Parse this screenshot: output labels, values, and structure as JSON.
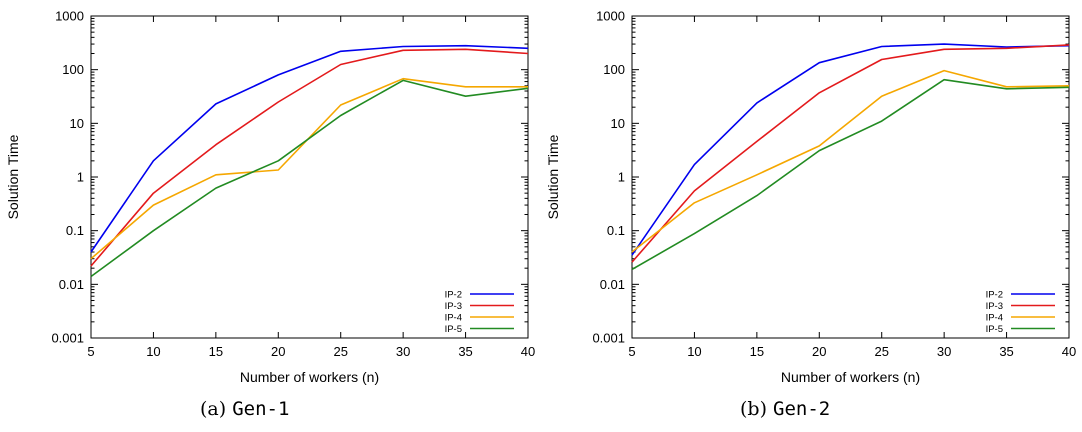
{
  "chart_data": [
    {
      "type": "line",
      "caption_label": "(a)",
      "caption_tag": "Gen-1",
      "xlabel": "Number of workers (n)",
      "ylabel": "Solution Time",
      "yscale": "log",
      "xlim": [
        5,
        40
      ],
      "ylim": [
        0.001,
        1000
      ],
      "xticks": [
        "5",
        "10",
        "15",
        "20",
        "25",
        "30",
        "35",
        "40"
      ],
      "yticks": [
        "0.001",
        "0.01",
        "0.1",
        "1",
        "10",
        "100",
        "1000"
      ],
      "grid": false,
      "legend_position": "bottom-right",
      "x": [
        5,
        10,
        15,
        20,
        25,
        30,
        35,
        40
      ],
      "series": [
        {
          "name": "IP-2",
          "color": "#0000ee",
          "values": [
            0.04,
            2.0,
            23,
            80,
            220,
            270,
            280,
            250
          ]
        },
        {
          "name": "IP-3",
          "color": "#e31a1c",
          "values": [
            0.022,
            0.5,
            4.0,
            25,
            125,
            230,
            240,
            200
          ]
        },
        {
          "name": "IP-4",
          "color": "#f5a700",
          "values": [
            0.03,
            0.3,
            1.1,
            1.35,
            22,
            68,
            48,
            48
          ]
        },
        {
          "name": "IP-5",
          "color": "#228b22",
          "values": [
            0.014,
            0.1,
            0.62,
            2.0,
            14,
            63,
            32,
            45
          ]
        }
      ]
    },
    {
      "type": "line",
      "caption_label": "(b)",
      "caption_tag": "Gen-2",
      "xlabel": "Number of workers (n)",
      "ylabel": "Solution Time",
      "yscale": "log",
      "xlim": [
        5,
        40
      ],
      "ylim": [
        0.001,
        1000
      ],
      "xticks": [
        "5",
        "10",
        "15",
        "20",
        "25",
        "30",
        "35",
        "40"
      ],
      "yticks": [
        "0.001",
        "0.01",
        "0.1",
        "1",
        "10",
        "100",
        "1000"
      ],
      "grid": false,
      "legend_position": "bottom-right",
      "x": [
        5,
        10,
        15,
        20,
        25,
        30,
        35,
        40
      ],
      "series": [
        {
          "name": "IP-2",
          "color": "#0000ee",
          "values": [
            0.035,
            1.7,
            24,
            135,
            270,
            300,
            265,
            280
          ]
        },
        {
          "name": "IP-3",
          "color": "#e31a1c",
          "values": [
            0.026,
            0.55,
            4.6,
            37,
            155,
            240,
            250,
            290
          ]
        },
        {
          "name": "IP-4",
          "color": "#f5a700",
          "values": [
            0.04,
            0.33,
            1.1,
            3.8,
            32,
            96,
            48,
            50
          ]
        },
        {
          "name": "IP-5",
          "color": "#228b22",
          "values": [
            0.019,
            0.088,
            0.45,
            3.1,
            11,
            65,
            44,
            47
          ]
        }
      ]
    }
  ]
}
